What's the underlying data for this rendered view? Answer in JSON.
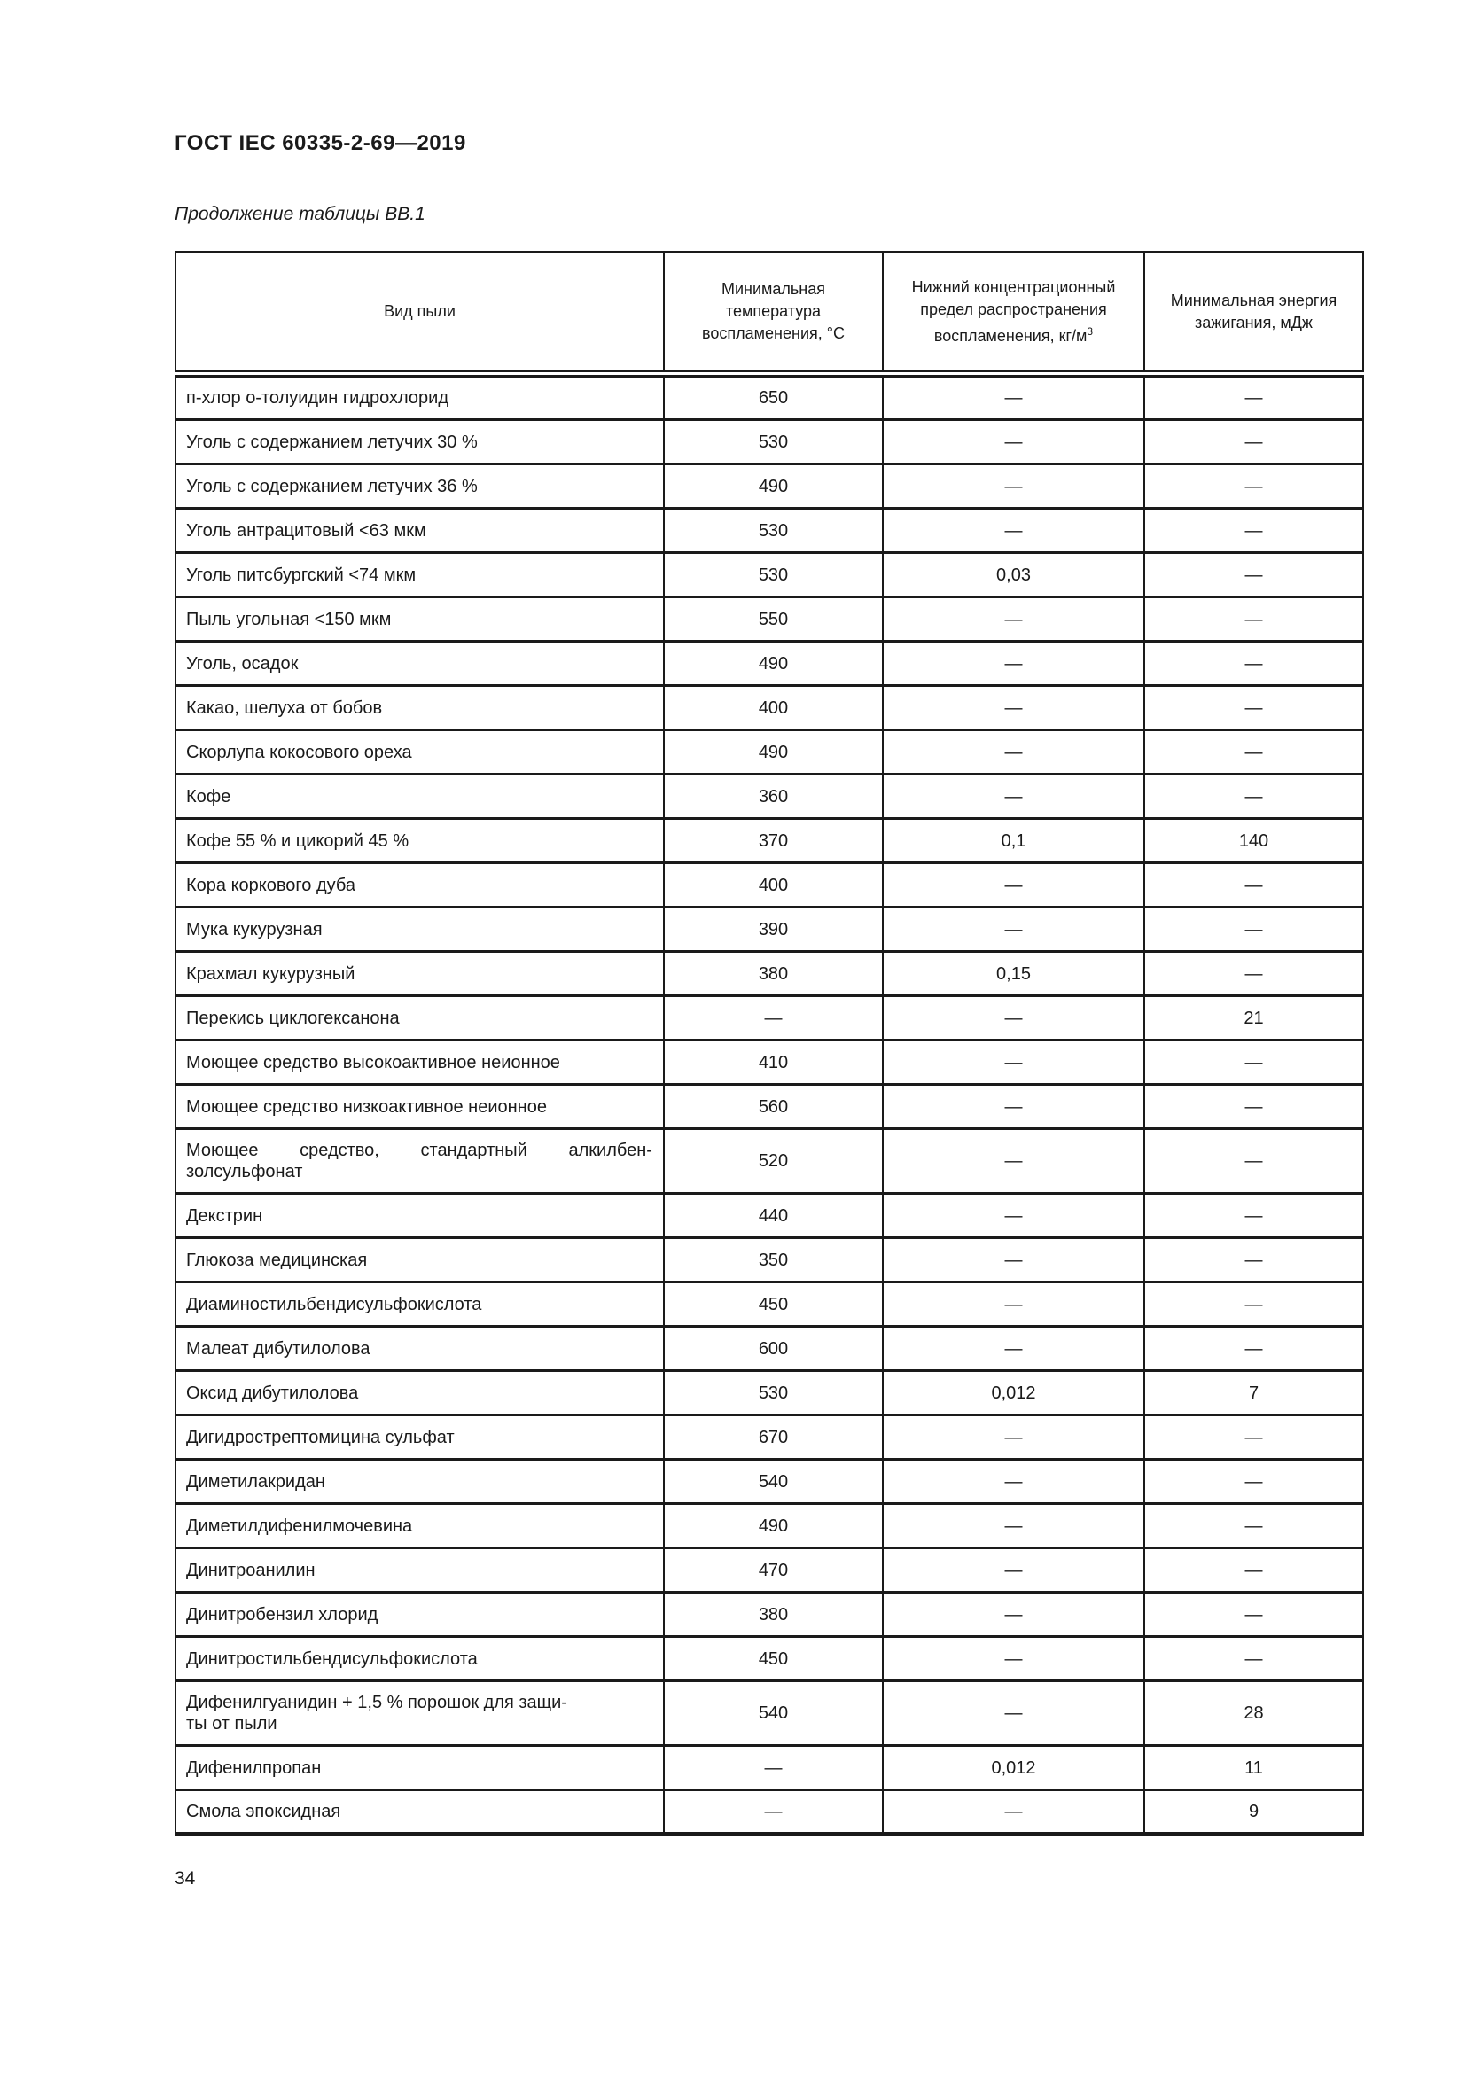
{
  "page": {
    "standard_ref": "ГОСТ IEC 60335-2-69—2019",
    "table_caption": "Продолжение таблицы ВВ.1",
    "page_number": "34"
  },
  "colors": {
    "background": "#ffffff",
    "text": "#1a1a1a",
    "border": "#1a1a1a"
  },
  "table": {
    "headers": [
      {
        "label": "Вид пыли"
      },
      {
        "label": "Минимальная температура воспламенения, °С"
      },
      {
        "label": "Нижний концентрационный предел распространения воспламенения, кг/м",
        "sup": "3"
      },
      {
        "label": "Минимальная энергия зажигания, мДж"
      }
    ],
    "rows": [
      {
        "dust": "п-хлор о-толуидин гидрохлорид",
        "t": "650",
        "c": "—",
        "e": "—"
      },
      {
        "dust": "Уголь с содержанием летучих 30 %",
        "t": "530",
        "c": "—",
        "e": "—"
      },
      {
        "dust": "Уголь с содержанием летучих 36 %",
        "t": "490",
        "c": "—",
        "e": "—"
      },
      {
        "dust": "Уголь антрацитовый <63 мкм",
        "t": "530",
        "c": "—",
        "e": "—"
      },
      {
        "dust": "Уголь питсбургский <74 мкм",
        "t": "530",
        "c": "0,03",
        "e": "—"
      },
      {
        "dust": "Пыль угольная <150 мкм",
        "t": "550",
        "c": "—",
        "e": "—"
      },
      {
        "dust": "Уголь, осадок",
        "t": "490",
        "c": "—",
        "e": "—"
      },
      {
        "dust": "Какао, шелуха от бобов",
        "t": "400",
        "c": "—",
        "e": "—"
      },
      {
        "dust": "Скорлупа кокосового ореха",
        "t": "490",
        "c": "—",
        "e": "—"
      },
      {
        "dust": "Кофе",
        "t": "360",
        "c": "—",
        "e": "—"
      },
      {
        "dust": "Кофе 55 % и цикорий 45 %",
        "t": "370",
        "c": "0,1",
        "e": "140"
      },
      {
        "dust": "Кора коркового дуба",
        "t": "400",
        "c": "—",
        "e": "—"
      },
      {
        "dust": "Мука кукурузная",
        "t": "390",
        "c": "—",
        "e": "—"
      },
      {
        "dust": "Крахмал кукурузный",
        "t": "380",
        "c": "0,15",
        "e": "—"
      },
      {
        "dust": "Перекись циклогексанона",
        "t": "—",
        "c": "—",
        "e": "21"
      },
      {
        "dust": "Моющее средство высокоактивное неионное",
        "t": "410",
        "c": "—",
        "e": "—"
      },
      {
        "dust": "Моющее средство низкоактивное неионное",
        "t": "560",
        "c": "—",
        "e": "—"
      },
      {
        "dust": [
          "Моющее средство, стандартный алкилбен-",
          "золсульфонат"
        ],
        "spread": true,
        "t": "520",
        "c": "—",
        "e": "—"
      },
      {
        "dust": "Декстрин",
        "t": "440",
        "c": "—",
        "e": "—"
      },
      {
        "dust": "Глюкоза медицинская",
        "t": "350",
        "c": "—",
        "e": "—"
      },
      {
        "dust": "Диаминостильбендисульфокислота",
        "t": "450",
        "c": "—",
        "e": "—"
      },
      {
        "dust": "Малеат дибутилолова",
        "t": "600",
        "c": "—",
        "e": "—"
      },
      {
        "dust": "Оксид дибутилолова",
        "t": "530",
        "c": "0,012",
        "e": "7"
      },
      {
        "dust": "Дигидрострептомицина сульфат",
        "t": "670",
        "c": "—",
        "e": "—"
      },
      {
        "dust": "Диметилакридан",
        "t": "540",
        "c": "—",
        "e": "—"
      },
      {
        "dust": "Диметилдифенилмочевина",
        "t": "490",
        "c": "—",
        "e": "—"
      },
      {
        "dust": "Динитроанилин",
        "t": "470",
        "c": "—",
        "e": "—"
      },
      {
        "dust": "Динитробензил хлорид",
        "t": "380",
        "c": "—",
        "e": "—"
      },
      {
        "dust": "Динитростильбендисульфокислота",
        "t": "450",
        "c": "—",
        "e": "—"
      },
      {
        "dust": [
          "Дифенилгуанидин + 1,5 % порошок для защи-",
          "ты от пыли"
        ],
        "spread": false,
        "t": "540",
        "c": "—",
        "e": "28"
      },
      {
        "dust": "Дифенилпропан",
        "t": "—",
        "c": "0,012",
        "e": "11"
      },
      {
        "dust": "Смола эпоксидная",
        "t": "—",
        "c": "—",
        "e": "9"
      }
    ]
  }
}
